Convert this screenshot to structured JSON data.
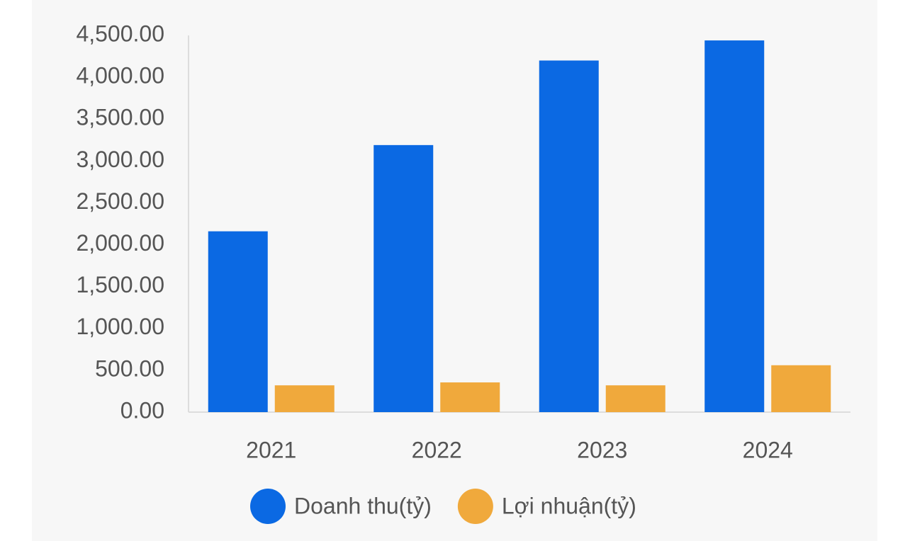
{
  "chart_data": {
    "type": "bar",
    "categories": [
      "2021",
      "2022",
      "2023",
      "2024"
    ],
    "series": [
      {
        "name": "Doanh thu(tỷ)",
        "color": "#0b69e3",
        "values": [
          2160,
          3190,
          4200,
          4440
        ]
      },
      {
        "name": "Lợi nhuận(tỷ)",
        "color": "#f0a93c",
        "values": [
          320,
          355,
          320,
          560
        ]
      }
    ],
    "ylim": [
      0,
      4500
    ],
    "yticks": [
      {
        "value": 0,
        "label": "0.00"
      },
      {
        "value": 500,
        "label": "500.00"
      },
      {
        "value": 1000,
        "label": "1,000.00"
      },
      {
        "value": 1500,
        "label": "1,500.00"
      },
      {
        "value": 2000,
        "label": "2,000.00"
      },
      {
        "value": 2500,
        "label": "2,500.00"
      },
      {
        "value": 3000,
        "label": "3,000.00"
      },
      {
        "value": 3500,
        "label": "3,500.00"
      },
      {
        "value": 4000,
        "label": "4,000.00"
      },
      {
        "value": 4500,
        "label": "4,500.00"
      }
    ],
    "grid": false
  }
}
